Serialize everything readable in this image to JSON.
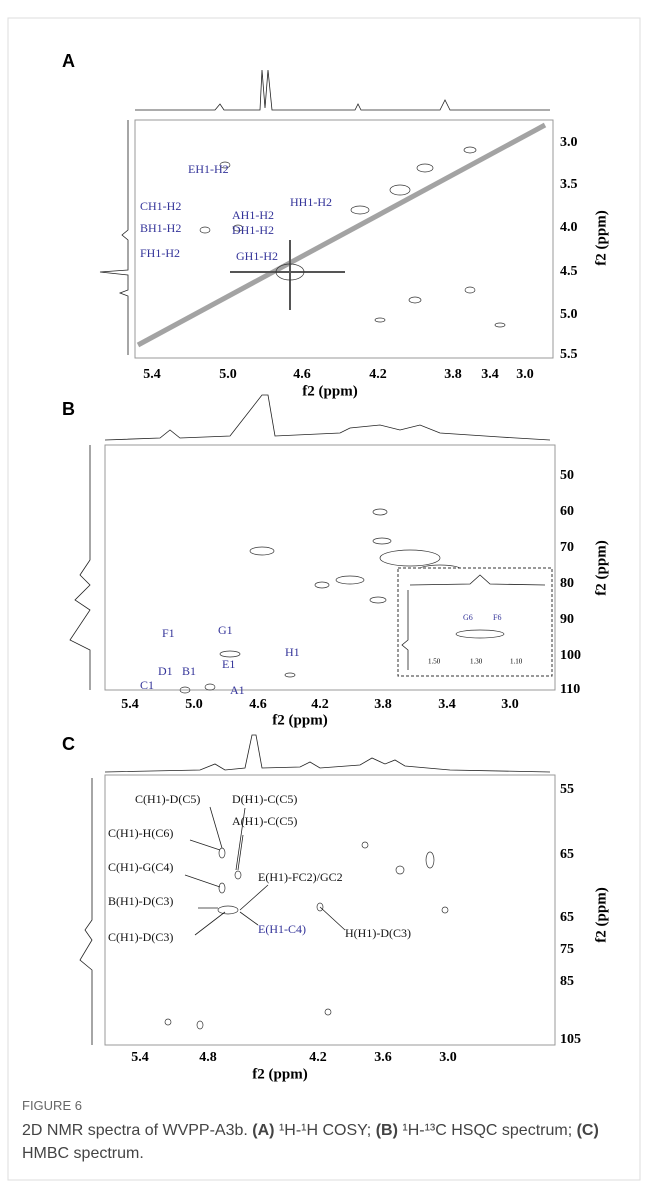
{
  "figure": {
    "panels": [
      {
        "label": "A",
        "xticks": [
          "5.4",
          "5.0",
          "4.6",
          "4.2",
          "3.8",
          "3.4",
          "3.0"
        ],
        "yticks": [
          "3.0",
          "3.5",
          "4.0",
          "4.5",
          "5.0",
          "5.5"
        ],
        "xlabel": "f2 (ppm)",
        "ylabel": "f2 (ppm)",
        "annotations": [
          "EH1-H2",
          "HH1-H2",
          "CH1-H2",
          "AH1-H2",
          "BH1-H2",
          "DH1-H2",
          "FH1-H2",
          "GH1-H2"
        ]
      },
      {
        "label": "B",
        "xticks": [
          "5.4",
          "5.0",
          "4.6",
          "4.2",
          "3.8",
          "3.4",
          "3.0"
        ],
        "yticks": [
          "50",
          "60",
          "70",
          "80",
          "90",
          "100",
          "110"
        ],
        "xlabel": "f2 (ppm)",
        "ylabel": "f2 (ppm)",
        "annotations": [
          "F1",
          "G1",
          "E1",
          "H1",
          "D1",
          "B1",
          "A1",
          "C1"
        ],
        "inset": {
          "annotations": [
            "G6",
            "F6"
          ],
          "xticks": [
            "1.50",
            "1.30",
            "1.10"
          ]
        }
      },
      {
        "label": "C",
        "xticks": [
          "5.4",
          "4.8",
          "4.2",
          "3.6",
          "3.0"
        ],
        "yticks": [
          "55",
          "65",
          "65",
          "75",
          "85",
          "105"
        ],
        "xlabel": "f2 (ppm)",
        "ylabel": "f2 (ppm)",
        "annotations": [
          "C(H1)-D(C5)",
          "D(H1)-C(C5)",
          "A(H1)-C(C5)",
          "C(H1)-H(C6)",
          "C(H1)-G(C4)",
          "E(H1)-FC2)/GC2",
          "B(H1)-D(C3)",
          "H(H1)-D(C3)",
          "C(H1)-D(C3)",
          "E(H1-C4)"
        ]
      }
    ],
    "caption": {
      "label": "FIGURE 6",
      "segments": [
        "2D NMR spectra of WVPP-A3b. ",
        "(A)",
        " ¹H-¹H COSY; ",
        "(B)",
        " ¹H-¹³C HSQC spectrum; ",
        "(C)",
        " HMBC spectrum."
      ]
    }
  }
}
